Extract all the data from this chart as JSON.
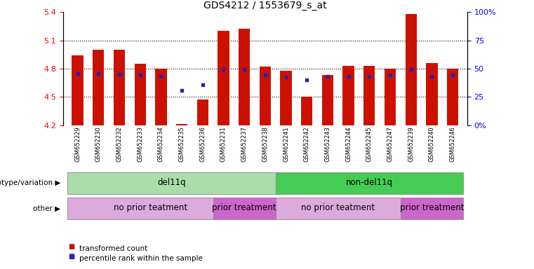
{
  "title": "GDS4212 / 1553679_s_at",
  "samples": [
    "GSM652229",
    "GSM652230",
    "GSM652232",
    "GSM652233",
    "GSM652234",
    "GSM652235",
    "GSM652236",
    "GSM652231",
    "GSM652237",
    "GSM652238",
    "GSM652241",
    "GSM652242",
    "GSM652243",
    "GSM652244",
    "GSM652245",
    "GSM652247",
    "GSM652239",
    "GSM652240",
    "GSM652246"
  ],
  "bar_heights": [
    4.94,
    5.0,
    5.0,
    4.85,
    4.8,
    4.21,
    4.47,
    5.2,
    5.22,
    4.82,
    4.78,
    4.5,
    4.73,
    4.83,
    4.83,
    4.8,
    5.38,
    4.86,
    4.8
  ],
  "blue_dots": [
    4.75,
    4.75,
    4.74,
    4.73,
    4.72,
    4.57,
    4.63,
    4.79,
    4.79,
    4.73,
    4.71,
    4.68,
    4.72,
    4.72,
    4.72,
    4.73,
    4.79,
    4.72,
    4.73
  ],
  "ylim_left": [
    4.2,
    5.4
  ],
  "ylim_right": [
    0,
    100
  ],
  "yticks_left": [
    4.2,
    4.5,
    4.8,
    5.1,
    5.4
  ],
  "yticks_right": [
    0,
    25,
    50,
    75,
    100
  ],
  "ytick_right_labels": [
    "0%",
    "25",
    "50",
    "75",
    "100%"
  ],
  "bar_color": "#cc1100",
  "dot_color": "#2222bb",
  "bar_width": 0.55,
  "genotype_groups": [
    {
      "label": "del11q",
      "start": 0,
      "end": 9,
      "color": "#aaddaa"
    },
    {
      "label": "non-del11q",
      "start": 10,
      "end": 18,
      "color": "#44cc55"
    }
  ],
  "treatment_groups": [
    {
      "label": "no prior teatment",
      "start": 0,
      "end": 7,
      "color": "#ddaadd"
    },
    {
      "label": "prior treatment",
      "start": 7,
      "end": 9,
      "color": "#cc66cc"
    },
    {
      "label": "no prior teatment",
      "start": 10,
      "end": 15,
      "color": "#ddaadd"
    },
    {
      "label": "prior treatment",
      "start": 16,
      "end": 18,
      "color": "#cc66cc"
    }
  ],
  "legend_red_label": "transformed count",
  "legend_blue_label": "percentile rank within the sample",
  "row_label_geno": "genotype/variation",
  "row_label_other": "other",
  "xtick_bg": "#dddddd"
}
